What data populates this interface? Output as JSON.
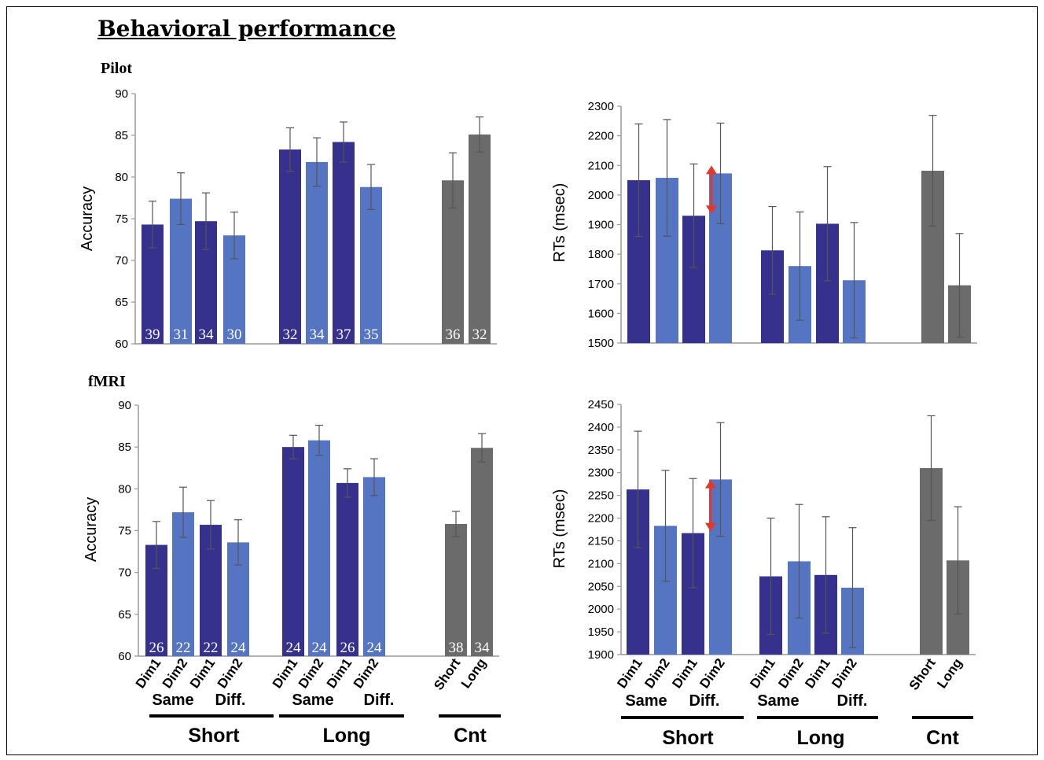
{
  "title": "Behavioral performance",
  "rows": [
    "Pilot",
    "fMRI"
  ],
  "colors": {
    "dim1": "#37318e",
    "dim2": "#5575c2",
    "control": "#6b6b6b",
    "error": "#555555",
    "arrow": "#e0392b"
  },
  "x_labels": {
    "bars": [
      "Dim1",
      "Dim2",
      "Dim1",
      "Dim2",
      "Dim1",
      "Dim2",
      "Dim1",
      "Dim2",
      "Short",
      "Long"
    ],
    "sub_groups": [
      "Same",
      "Diff.",
      "Same",
      "Diff."
    ],
    "groups": [
      "Short",
      "Long",
      "Cnt"
    ]
  },
  "chart_data": [
    {
      "name": "pilot-accuracy",
      "type": "bar",
      "ylabel": "Accuracy",
      "ylim": [
        60,
        90
      ],
      "yticks": [
        60,
        65,
        70,
        75,
        80,
        85,
        90
      ],
      "values": [
        74.3,
        77.4,
        74.7,
        73.0,
        83.3,
        81.8,
        84.2,
        78.8,
        79.6,
        85.1
      ],
      "errors": [
        2.8,
        3.1,
        3.4,
        2.8,
        2.6,
        2.9,
        2.4,
        2.7,
        3.3,
        2.1
      ],
      "counts": [
        "39",
        "31",
        "34",
        "30",
        "32",
        "34",
        "37",
        "35",
        "36",
        "32"
      ]
    },
    {
      "name": "pilot-rt",
      "type": "bar",
      "ylabel": "RTs (msec)",
      "ylim": [
        1500,
        2300
      ],
      "yticks": [
        1500,
        1600,
        1700,
        1800,
        1900,
        2000,
        2100,
        2200,
        2300
      ],
      "values": [
        2050,
        2058,
        1930,
        2073,
        1813,
        1760,
        1903,
        1712,
        2082,
        1695
      ],
      "errors": [
        190,
        197,
        175,
        170,
        148,
        183,
        193,
        195,
        187,
        175
      ]
    },
    {
      "name": "fmri-accuracy",
      "type": "bar",
      "ylabel": "Accuracy",
      "ylim": [
        60,
        90
      ],
      "yticks": [
        60,
        65,
        70,
        75,
        80,
        85,
        90
      ],
      "values": [
        73.3,
        77.2,
        75.7,
        73.6,
        85.0,
        85.8,
        80.7,
        81.4,
        75.8,
        84.9
      ],
      "errors": [
        2.8,
        3.0,
        2.9,
        2.7,
        1.4,
        1.8,
        1.7,
        2.2,
        1.5,
        1.7
      ],
      "counts": [
        "26",
        "22",
        "22",
        "24",
        "24",
        "24",
        "26",
        "24",
        "38",
        "34"
      ]
    },
    {
      "name": "fmri-rt",
      "type": "bar",
      "ylabel": "RTs (msec)",
      "ylim": [
        1900,
        2450
      ],
      "yticks": [
        1900,
        1950,
        2000,
        2050,
        2100,
        2150,
        2200,
        2250,
        2300,
        2350,
        2400,
        2450
      ],
      "values": [
        2263,
        2183,
        2167,
        2285,
        2072,
        2105,
        2075,
        2047,
        2310,
        2107
      ],
      "errors": [
        128,
        122,
        120,
        125,
        128,
        125,
        128,
        132,
        115,
        118
      ]
    }
  ]
}
